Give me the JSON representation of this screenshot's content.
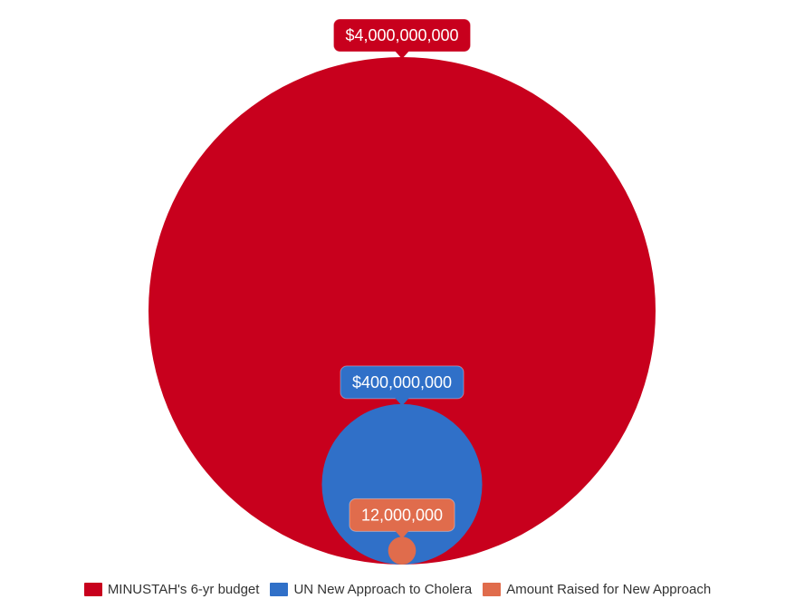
{
  "chart_data": {
    "type": "bubble",
    "title": "",
    "series": [
      {
        "name": "MINUSTAH's 6-yr budget",
        "value": 4000000000,
        "label": "$4,000,000,000",
        "color": "#c8001d"
      },
      {
        "name": "UN New Approach to Cholera",
        "value": 400000000,
        "label": "$400,000,000",
        "color": "#3070c8"
      },
      {
        "name": "Amount Raised for New Approach",
        "value": 12000000,
        "label": "12,000,000",
        "color": "#e06c4c"
      }
    ],
    "legend_position": "bottom"
  }
}
